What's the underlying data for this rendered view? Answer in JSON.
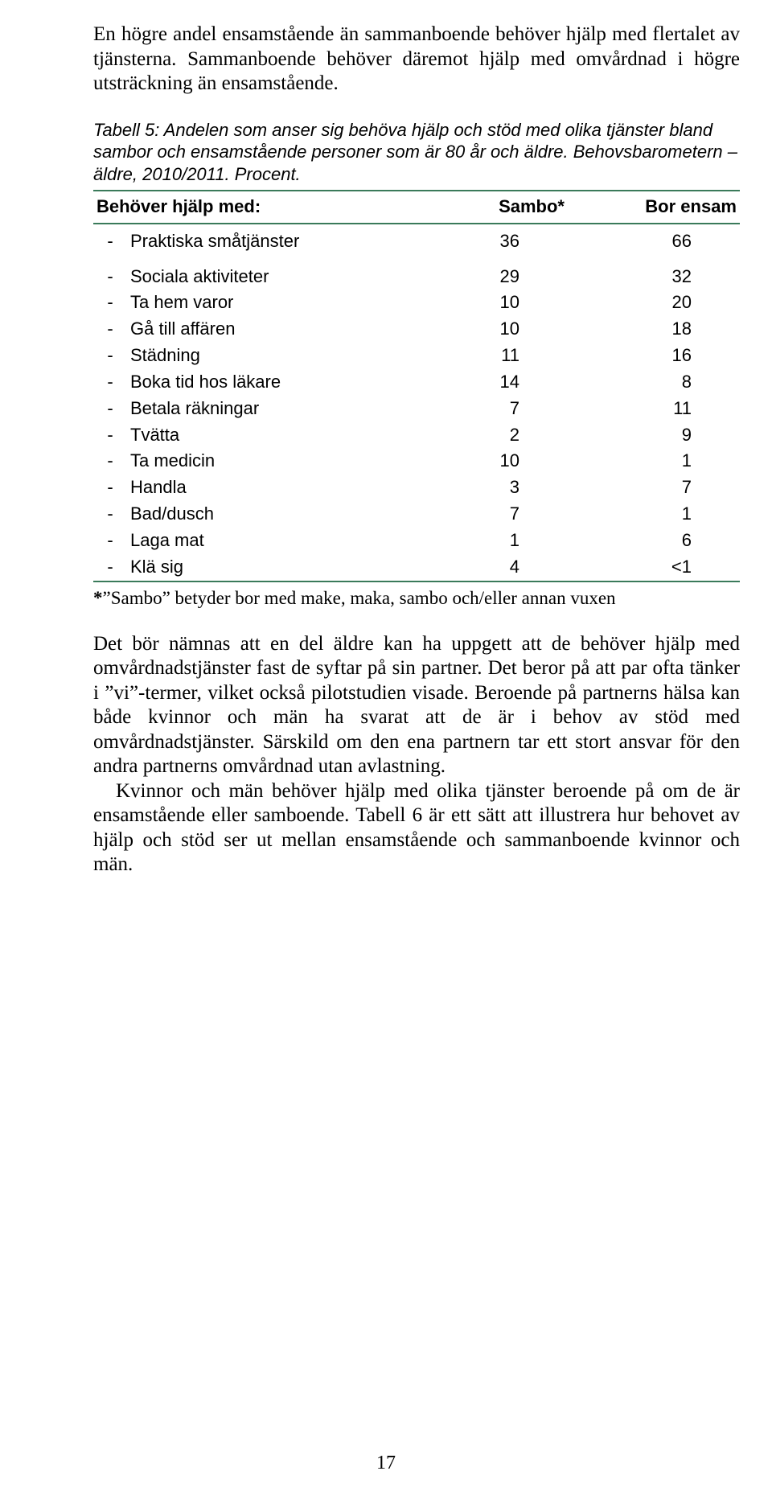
{
  "colors": {
    "table_rule": "#3a7a5a",
    "text": "#000000",
    "background": "#ffffff"
  },
  "typography": {
    "body_family": "Times New Roman",
    "body_size_pt": 12,
    "caption_family": "Arial",
    "caption_style": "italic",
    "table_family": "Arial"
  },
  "intro_paragraph": "En högre andel ensamstående än sammanboende behöver hjälp med flertalet av tjänsterna. Sammanboende behöver däremot hjälp med omvårdnad i högre utsträckning än ensamstående.",
  "table": {
    "caption": "Tabell 5: Andelen som anser sig behöva hjälp och stöd med olika tjänster bland sambor och ensamstående personer som är 80 år och äldre. Behovsbarometern – äldre, 2010/2011. Procent.",
    "columns": [
      "Behöver hjälp med:",
      "Sambo*",
      "Bor ensam"
    ],
    "rows": [
      {
        "label": "Praktiska småtjänster",
        "sambo": "36",
        "bor_ensam": "66"
      },
      {
        "label": "Sociala aktiviteter",
        "sambo": "29",
        "bor_ensam": "32"
      },
      {
        "label": "Ta hem varor",
        "sambo": "10",
        "bor_ensam": "20"
      },
      {
        "label": "Gå till affären",
        "sambo": "10",
        "bor_ensam": "18"
      },
      {
        "label": "Städning",
        "sambo": "11",
        "bor_ensam": "16"
      },
      {
        "label": "Boka tid hos läkare",
        "sambo": "14",
        "bor_ensam": "8"
      },
      {
        "label": "Betala räkningar",
        "sambo": "7",
        "bor_ensam": "11"
      },
      {
        "label": "Tvätta",
        "sambo": "2",
        "bor_ensam": "9"
      },
      {
        "label": "Ta medicin",
        "sambo": "10",
        "bor_ensam": "1"
      },
      {
        "label": "Handla",
        "sambo": "3",
        "bor_ensam": "7"
      },
      {
        "label": "Bad/dusch",
        "sambo": "7",
        "bor_ensam": "1"
      },
      {
        "label": "Laga mat",
        "sambo": "1",
        "bor_ensam": "6"
      },
      {
        "label": "Klä sig",
        "sambo": "4",
        "bor_ensam": "<1"
      }
    ],
    "row_dash": "-"
  },
  "footnote": {
    "star": "*",
    "text": "”Sambo” betyder bor med make, maka, sambo och/eller annan vuxen"
  },
  "body_paragraph_1": "Det bör nämnas att en del äldre kan ha uppgett att de behöver hjälp med omvårdnadstjänster fast de syftar på sin partner. Det beror på att par ofta tänker i ”vi”-termer, vilket också pilotstudien visade. Beroende på partnerns hälsa kan både kvinnor och män ha svarat att de är i behov av stöd med omvårdnadstjänster. Särskild om den ena partnern tar ett stort ansvar för den andra partnerns omvårdnad utan avlastning.",
  "body_paragraph_2": "Kvinnor och män behöver hjälp med olika tjänster beroende på om de är ensamstående eller samboende. Tabell 6 är ett sätt att illustrera hur behovet av hjälp och stöd ser ut mellan ensamstående och sammanboende kvinnor och män.",
  "page_number": "17"
}
